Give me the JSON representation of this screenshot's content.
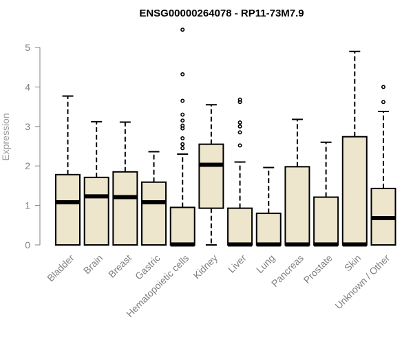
{
  "chart_data": {
    "type": "boxplot",
    "title": "ENSG00000264078 - RP11-73M7.9",
    "xlabel": "",
    "ylabel": "Expression",
    "ylim": [
      0,
      5.5
    ],
    "yticks": [
      0,
      1,
      2,
      3,
      4,
      5
    ],
    "grid": false,
    "colors": {
      "box_fill": "#ede6cc",
      "box_stroke": "#000000",
      "axis": "#808080",
      "title": "#000000"
    },
    "categories": [
      "Bladder",
      "Brain",
      "Breast",
      "Gastric",
      "Hematopoietic cells",
      "Kidney",
      "Liver",
      "Lung",
      "Pancreas",
      "Prostate",
      "Skin",
      "Unknown / Other"
    ],
    "boxes": [
      {
        "category": "Bladder",
        "min": 0,
        "q1": 0,
        "median": 1.08,
        "q3": 1.78,
        "max": 3.77,
        "outliers": []
      },
      {
        "category": "Brain",
        "min": 0,
        "q1": 0,
        "median": 1.23,
        "q3": 1.71,
        "max": 3.12,
        "outliers": []
      },
      {
        "category": "Breast",
        "min": 0,
        "q1": 0,
        "median": 1.21,
        "q3": 1.85,
        "max": 3.11,
        "outliers": []
      },
      {
        "category": "Gastric",
        "min": 0,
        "q1": 0,
        "median": 1.08,
        "q3": 1.59,
        "max": 2.36,
        "outliers": []
      },
      {
        "category": "Hematopoietic cells",
        "min": 0,
        "q1": 0,
        "median": 0.01,
        "q3": 0.95,
        "max": 2.3,
        "outliers": [
          2.45,
          2.55,
          2.7,
          2.95,
          3.02,
          3.15,
          3.3,
          3.65,
          4.32,
          5.45
        ]
      },
      {
        "category": "Kidney",
        "min": 0,
        "q1": 0.93,
        "median": 2.03,
        "q3": 2.55,
        "max": 3.55,
        "outliers": []
      },
      {
        "category": "Liver",
        "min": 0,
        "q1": 0,
        "median": 0.01,
        "q3": 0.93,
        "max": 2.1,
        "outliers": [
          2.52,
          2.85,
          3.0,
          3.1,
          3.62,
          3.68
        ]
      },
      {
        "category": "Lung",
        "min": 0,
        "q1": 0,
        "median": 0.01,
        "q3": 0.8,
        "max": 1.96,
        "outliers": []
      },
      {
        "category": "Pancreas",
        "min": 0,
        "q1": 0,
        "median": 0.01,
        "q3": 1.98,
        "max": 3.18,
        "outliers": []
      },
      {
        "category": "Prostate",
        "min": 0,
        "q1": 0,
        "median": 0.01,
        "q3": 1.21,
        "max": 2.6,
        "outliers": []
      },
      {
        "category": "Skin",
        "min": 0,
        "q1": 0,
        "median": 0.01,
        "q3": 2.74,
        "max": 4.9,
        "outliers": []
      },
      {
        "category": "Unknown / Other",
        "min": 0,
        "q1": 0,
        "median": 0.68,
        "q3": 1.43,
        "max": 3.38,
        "outliers": [
          3.62,
          4.0
        ]
      }
    ]
  }
}
